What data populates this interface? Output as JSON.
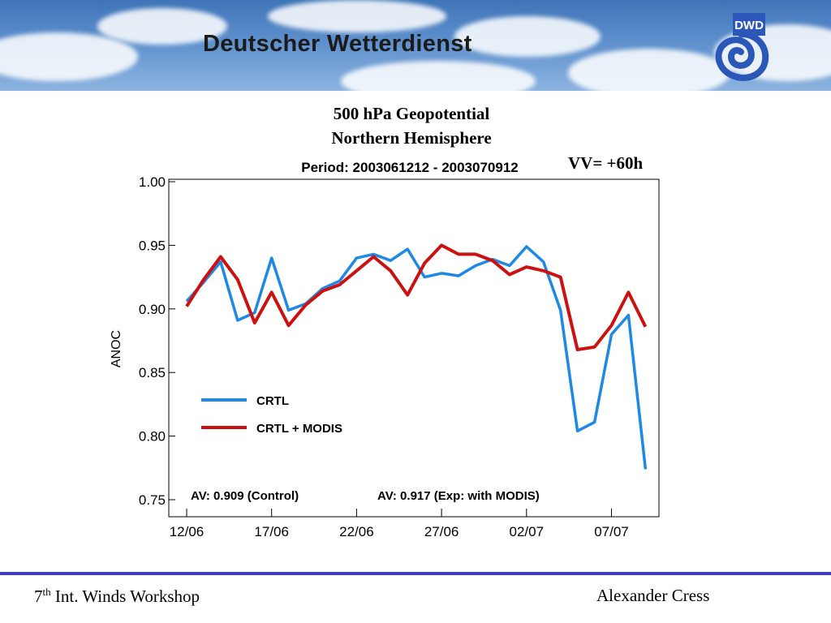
{
  "header": {
    "title": "Deutscher Wetterdienst",
    "logo_text": "DWD"
  },
  "slide": {
    "title_line1": "500 hPa Geopotential",
    "title_line2": "Northern Hemisphere",
    "vv_label": "VV= +60h"
  },
  "chart_data": {
    "type": "line",
    "title": "Period: 2003061212 - 2003070912",
    "ylabel": "ANOC",
    "xlabel": "",
    "ylim": [
      0.75,
      1.0
    ],
    "yticks": [
      "0.75",
      "0.80",
      "0.85",
      "0.90",
      "0.95",
      "1.00"
    ],
    "xtick_labels": [
      "12/06",
      "17/06",
      "22/06",
      "27/06",
      "02/07",
      "07/07"
    ],
    "grid": false,
    "legend_position": "center-left",
    "series": [
      {
        "name": "CRTL",
        "color": "#1e88e5",
        "values": [
          0.906,
          0.921,
          0.937,
          0.891,
          0.897,
          0.94,
          0.899,
          0.904,
          0.916,
          0.922,
          0.94,
          0.943,
          0.938,
          0.947,
          0.925,
          0.928,
          0.926,
          0.934,
          0.939,
          0.934,
          0.949,
          0.937,
          0.899,
          0.804,
          0.811,
          0.88,
          0.895,
          0.774
        ]
      },
      {
        "name": "CRTL + MODIS",
        "color": "#cc1111",
        "values": [
          0.902,
          0.923,
          0.941,
          0.923,
          0.889,
          0.913,
          0.887,
          0.903,
          0.914,
          0.919,
          0.93,
          0.941,
          0.93,
          0.911,
          0.936,
          0.95,
          0.943,
          0.943,
          0.938,
          0.927,
          0.933,
          0.93,
          0.925,
          0.868,
          0.87,
          0.887,
          0.913,
          0.886
        ]
      }
    ],
    "annotations": {
      "av_control": "AV: 0.909 (Control)",
      "av_exp": "AV: 0.917 (Exp: with MODIS)"
    }
  },
  "footer": {
    "left_prefix": "7",
    "left_sup": "th",
    "left_suffix": " Int. Winds Workshop",
    "right": "Alexander Cress"
  }
}
